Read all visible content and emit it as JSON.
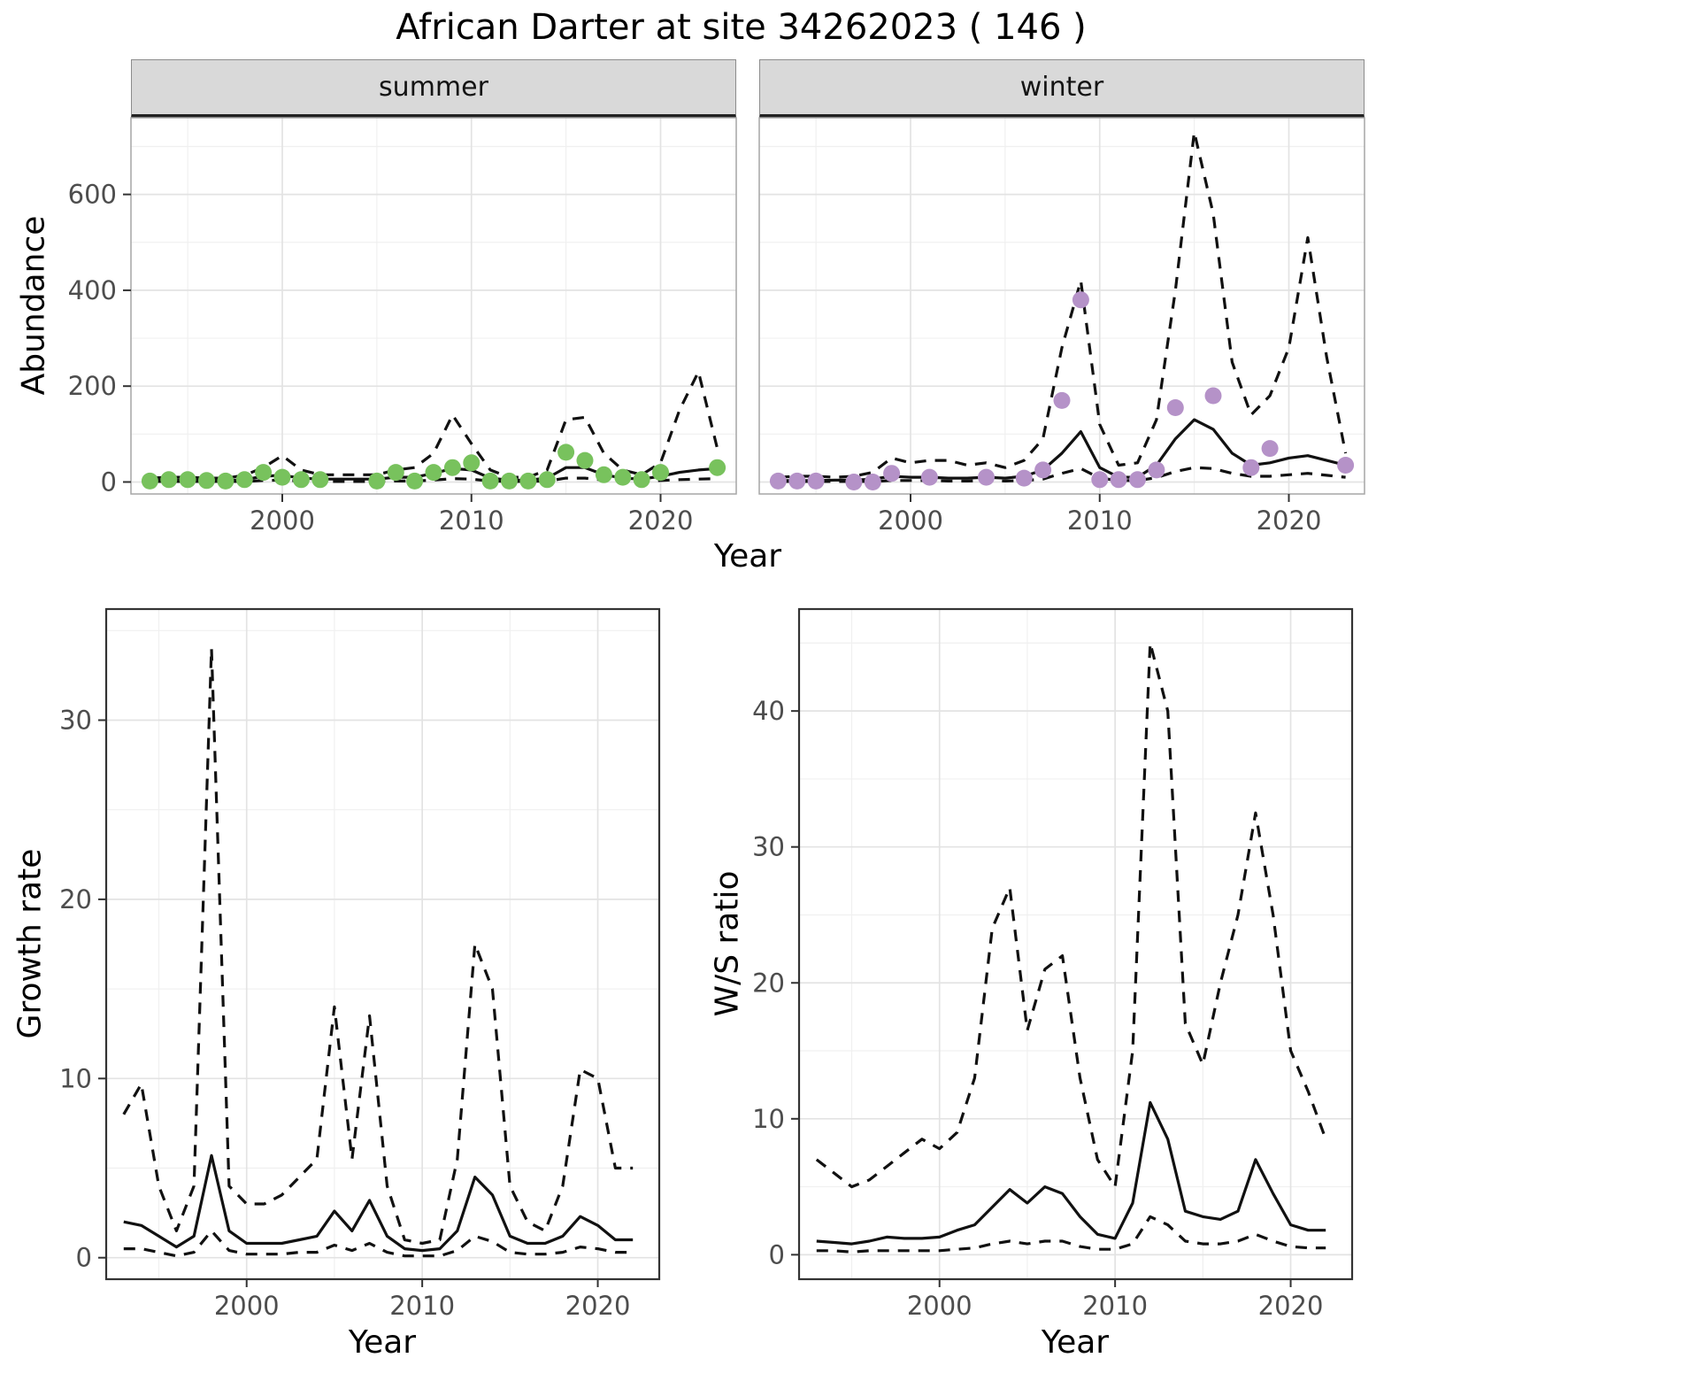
{
  "title": "African Darter at site 34262023 ( 146 )",
  "facets": [
    {
      "label": "summer"
    },
    {
      "label": "winter"
    }
  ],
  "axis_labels": {
    "abundance": "Abundance",
    "year": "Year",
    "growth": "Growth rate",
    "ws": "W/S ratio"
  },
  "colors": {
    "summer_points": "#78c25d",
    "winter_points": "#b592c8",
    "line": "#111111",
    "grid_major": "#e3e3e3",
    "grid_minor": "#f0f0f0",
    "strip_bg": "#d9d9d9",
    "tick": "#333333",
    "tick_text": "#4d4d4d"
  },
  "chart_data": [
    {
      "type": "line",
      "panel": "summer",
      "facet": "summer",
      "xlabel": "Year",
      "ylabel": "Abundance",
      "xlim": [
        1992,
        2024
      ],
      "ylim": [
        -25,
        760
      ],
      "xticks": [
        2000,
        2010,
        2020
      ],
      "yticks": [
        0,
        200,
        400,
        600
      ],
      "xticks_minor": [
        1995,
        2005,
        2015
      ],
      "yticks_minor": [
        100,
        300,
        500,
        700
      ],
      "x": [
        1993,
        1994,
        1995,
        1996,
        1997,
        1998,
        1999,
        2000,
        2001,
        2002,
        2003,
        2004,
        2005,
        2006,
        2007,
        2008,
        2009,
        2010,
        2011,
        2012,
        2013,
        2014,
        2015,
        2016,
        2017,
        2018,
        2019,
        2020,
        2021,
        2022,
        2023
      ],
      "series": [
        {
          "name": "upper_95ci",
          "style": "dashed",
          "values": [
            8,
            10,
            10,
            8,
            8,
            14,
            30,
            55,
            25,
            15,
            15,
            15,
            15,
            25,
            30,
            60,
            140,
            80,
            25,
            10,
            10,
            25,
            130,
            135,
            60,
            25,
            15,
            40,
            150,
            230,
            70
          ]
        },
        {
          "name": "fit",
          "style": "solid",
          "values": [
            3,
            4,
            4,
            3,
            3,
            5,
            12,
            14,
            8,
            6,
            6,
            6,
            6,
            10,
            10,
            18,
            28,
            25,
            8,
            4,
            4,
            8,
            30,
            30,
            15,
            8,
            6,
            12,
            20,
            25,
            28
          ]
        },
        {
          "name": "lower_95ci",
          "style": "dashed",
          "values": [
            1,
            1,
            1,
            1,
            1,
            1,
            3,
            4,
            2,
            1,
            1,
            1,
            1,
            2,
            2,
            4,
            7,
            6,
            2,
            1,
            1,
            2,
            8,
            8,
            4,
            2,
            1,
            3,
            5,
            6,
            7
          ]
        }
      ],
      "points": {
        "name": "observed_counts",
        "color": "#78c25d",
        "x": [
          1993,
          1994,
          1995,
          1996,
          1997,
          1998,
          1999,
          2000,
          2001,
          2002,
          2005,
          2006,
          2007,
          2008,
          2009,
          2010,
          2011,
          2012,
          2013,
          2014,
          2015,
          2016,
          2017,
          2018,
          2019,
          2020,
          2023
        ],
        "y": [
          2,
          5,
          5,
          3,
          2,
          5,
          20,
          10,
          5,
          5,
          2,
          20,
          2,
          20,
          30,
          40,
          2,
          2,
          2,
          5,
          62,
          45,
          15,
          10,
          5,
          20,
          30
        ]
      }
    },
    {
      "type": "line",
      "panel": "winter",
      "facet": "winter",
      "xlabel": "Year",
      "ylabel": "Abundance",
      "xlim": [
        1992,
        2024
      ],
      "ylim": [
        -25,
        760
      ],
      "xticks": [
        2000,
        2010,
        2020
      ],
      "yticks": [
        0,
        200,
        400,
        600
      ],
      "xticks_minor": [
        1995,
        2005,
        2015
      ],
      "yticks_minor": [
        100,
        300,
        500,
        700
      ],
      "x": [
        1993,
        1994,
        1995,
        1996,
        1997,
        1998,
        1999,
        2000,
        2001,
        2002,
        2003,
        2004,
        2005,
        2006,
        2007,
        2008,
        2009,
        2010,
        2011,
        2012,
        2013,
        2014,
        2015,
        2016,
        2017,
        2018,
        2019,
        2020,
        2021,
        2022,
        2023
      ],
      "series": [
        {
          "name": "upper_95ci",
          "style": "dashed",
          "values": [
            10,
            12,
            12,
            10,
            12,
            20,
            50,
            40,
            45,
            45,
            35,
            40,
            30,
            45,
            90,
            280,
            420,
            120,
            35,
            40,
            130,
            400,
            730,
            560,
            250,
            140,
            180,
            280,
            510,
            260,
            60
          ]
        },
        {
          "name": "fit",
          "style": "solid",
          "values": [
            3,
            3,
            3,
            4,
            4,
            6,
            12,
            10,
            10,
            8,
            8,
            10,
            8,
            12,
            25,
            60,
            105,
            30,
            10,
            10,
            35,
            90,
            130,
            110,
            60,
            35,
            40,
            50,
            55,
            45,
            35
          ]
        },
        {
          "name": "lower_95ci",
          "style": "dashed",
          "values": [
            1,
            1,
            1,
            1,
            1,
            1,
            3,
            3,
            3,
            2,
            2,
            3,
            2,
            3,
            6,
            18,
            28,
            8,
            3,
            3,
            9,
            22,
            30,
            28,
            18,
            12,
            12,
            15,
            18,
            14,
            10
          ]
        }
      ],
      "points": {
        "name": "observed_counts",
        "color": "#b592c8",
        "x": [
          1993,
          1994,
          1995,
          1997,
          1998,
          1999,
          2001,
          2004,
          2006,
          2007,
          2008,
          2009,
          2010,
          2011,
          2012,
          2013,
          2014,
          2016,
          2018,
          2019,
          2023
        ],
        "y": [
          2,
          2,
          2,
          0,
          0,
          18,
          10,
          10,
          8,
          25,
          170,
          380,
          5,
          5,
          5,
          25,
          155,
          180,
          30,
          70,
          35
        ]
      }
    },
    {
      "type": "line",
      "panel": "growth_rate",
      "xlabel": "Year",
      "ylabel": "Growth rate",
      "xlim": [
        1992,
        2023.5
      ],
      "ylim": [
        -1.2,
        36.2
      ],
      "xticks": [
        2000,
        2010,
        2020
      ],
      "yticks": [
        0,
        10,
        20,
        30
      ],
      "xticks_minor": [
        1995,
        2005,
        2015
      ],
      "yticks_minor": [
        5,
        15,
        25,
        35
      ],
      "x": [
        1993,
        1994,
        1995,
        1996,
        1997,
        1998,
        1999,
        2000,
        2001,
        2002,
        2003,
        2004,
        2005,
        2006,
        2007,
        2008,
        2009,
        2010,
        2011,
        2012,
        2013,
        2014,
        2015,
        2016,
        2017,
        2018,
        2019,
        2020,
        2021,
        2022
      ],
      "series": [
        {
          "name": "upper_95ci",
          "style": "dashed",
          "values": [
            8.0,
            9.7,
            4.0,
            1.5,
            4.0,
            34.0,
            4.0,
            3.0,
            3.0,
            3.5,
            4.5,
            5.5,
            14.0,
            5.5,
            13.5,
            4.0,
            1.0,
            0.8,
            1.0,
            5.5,
            17.5,
            15.0,
            4.0,
            2.0,
            1.5,
            4.0,
            10.5,
            10.0,
            5.0,
            5.0
          ]
        },
        {
          "name": "fit",
          "style": "solid",
          "values": [
            2.0,
            1.8,
            1.2,
            0.6,
            1.2,
            5.7,
            1.5,
            0.8,
            0.8,
            0.8,
            1.0,
            1.2,
            2.6,
            1.5,
            3.2,
            1.2,
            0.5,
            0.4,
            0.5,
            1.5,
            4.5,
            3.5,
            1.2,
            0.8,
            0.8,
            1.2,
            2.3,
            1.8,
            1.0,
            1.0
          ]
        },
        {
          "name": "lower_95ci",
          "style": "dashed",
          "values": [
            0.5,
            0.5,
            0.3,
            0.1,
            0.3,
            1.5,
            0.4,
            0.2,
            0.2,
            0.2,
            0.3,
            0.3,
            0.7,
            0.4,
            0.8,
            0.3,
            0.1,
            0.1,
            0.1,
            0.4,
            1.2,
            0.9,
            0.3,
            0.2,
            0.2,
            0.3,
            0.6,
            0.5,
            0.3,
            0.3
          ]
        }
      ]
    },
    {
      "type": "line",
      "panel": "ws_ratio",
      "xlabel": "Year",
      "ylabel": "W/S ratio",
      "xlim": [
        1992,
        2023.5
      ],
      "ylim": [
        -1.8,
        47.5
      ],
      "xticks": [
        2000,
        2010,
        2020
      ],
      "yticks": [
        0,
        10,
        20,
        30,
        40
      ],
      "xticks_minor": [
        1995,
        2005,
        2015
      ],
      "yticks_minor": [
        5,
        15,
        25,
        35,
        45
      ],
      "x": [
        1993,
        1994,
        1995,
        1996,
        1997,
        1998,
        1999,
        2000,
        2001,
        2002,
        2003,
        2004,
        2005,
        2006,
        2007,
        2008,
        2009,
        2010,
        2011,
        2012,
        2013,
        2014,
        2015,
        2016,
        2017,
        2018,
        2019,
        2020,
        2021,
        2022
      ],
      "series": [
        {
          "name": "upper_95ci",
          "style": "dashed",
          "values": [
            7.0,
            6.0,
            5.0,
            5.5,
            6.5,
            7.5,
            8.5,
            7.8,
            9.0,
            13.0,
            24.0,
            27.0,
            16.5,
            21.0,
            22.0,
            13.0,
            7.0,
            5.0,
            15.0,
            45.0,
            40.0,
            17.0,
            14.0,
            20.0,
            25.0,
            32.5,
            25.0,
            15.0,
            12.0,
            8.5
          ]
        },
        {
          "name": "fit",
          "style": "solid",
          "values": [
            1.0,
            0.9,
            0.8,
            1.0,
            1.3,
            1.2,
            1.2,
            1.3,
            1.8,
            2.2,
            3.5,
            4.8,
            3.8,
            5.0,
            4.5,
            2.8,
            1.5,
            1.2,
            3.8,
            11.2,
            8.5,
            3.2,
            2.8,
            2.6,
            3.2,
            7.0,
            4.5,
            2.2,
            1.8,
            1.8
          ]
        },
        {
          "name": "lower_95ci",
          "style": "dashed",
          "values": [
            0.3,
            0.3,
            0.2,
            0.3,
            0.3,
            0.3,
            0.3,
            0.3,
            0.4,
            0.5,
            0.8,
            1.0,
            0.8,
            1.0,
            1.0,
            0.6,
            0.4,
            0.4,
            0.8,
            2.8,
            2.2,
            1.0,
            0.8,
            0.8,
            1.0,
            1.5,
            1.0,
            0.6,
            0.5,
            0.5
          ]
        }
      ]
    }
  ]
}
